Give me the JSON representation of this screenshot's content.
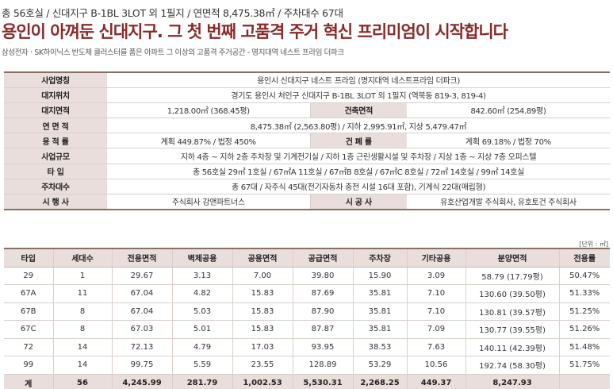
{
  "header": {
    "summary_line": "총 56호실 / 신대지구 B-1BL 3LOT 외 1필지 /  연면적 8,475.38㎡ / 주차대수 67대",
    "title": "용인이 아껴둔 신대지구. 그 첫 번째 고품격 주거 혁신 프리미엄이 시작합니다",
    "subtitle": "삼성전자 · SK하이닉스 반도체 클러스터를 품은 아파트 그 이상의 고품격 주거공간 - 명지대역 네스트 프라임 더파크"
  },
  "overview": {
    "rows": [
      {
        "type": "full",
        "label": "사업명칭",
        "value": "용인시 신대지구 네스트 프라임 (명지대역 네스트프라임 더파크)"
      },
      {
        "type": "full",
        "label": "대지위치",
        "value": "경기도 용인시 처인구 신대지구 B-1BL 3LOT 외 1필지 (역북동 819-3, 819-4)"
      },
      {
        "type": "split",
        "label": "대지면적",
        "value": "1,218.00㎡ (368.45평)",
        "label2": "건축면적",
        "value2": "842.60㎡ (254.89평)"
      },
      {
        "type": "full",
        "label": "연 면 적",
        "value": "8,475.38㎡ (2,563.80평) / 지하 2,995.91㎡, 지상 5,479.47㎡"
      },
      {
        "type": "split",
        "label": "용 적 률",
        "value": "계획 449.87% / 법정 450%",
        "label2": "건 폐 률",
        "value2": "계획 69.18% / 법정 70%"
      },
      {
        "type": "full",
        "label": "사업규모",
        "value": "지하 4층 ~ 지하 2층 주차장 및 기계전기실 / 지하 1층 근린생활시설 및 주차장 / 지상 1층 ~ 지상 7층 오피스텔"
      },
      {
        "type": "full",
        "label": "타    입",
        "value": "총 56호실  29㎡ 1호실 / 67㎡A 11호실 / 67㎡B 8호실 / 67㎡C 8호실 / 72㎡ 14호실 / 99㎡ 14호실"
      },
      {
        "type": "full",
        "label": "주차대수",
        "value": "총 67대 / 자주식 45대(전기자동차 충전 시설 16대 포함),  기계식 22대(매립형)"
      },
      {
        "type": "split",
        "label": "시 행 사",
        "value": "주식회사 강앤파트너스",
        "label2": "시 공 사",
        "value2": "유호산업개발 주식회사, 유호토건 주식회사"
      }
    ]
  },
  "unit_note": "[단위 : ㎡]",
  "detail": {
    "headers": [
      "타입",
      "세대수",
      "전용면적",
      "벽체공용",
      "공용면적",
      "공급면적",
      "주차장",
      "기타공용",
      "분양면적",
      "전용률"
    ],
    "rows": [
      [
        "29",
        "1",
        "29.67",
        "3.13",
        "7.00",
        "39.80",
        "15.90",
        "3.09",
        "58.79 (17.79평)",
        "50.47%"
      ],
      [
        "67A",
        "11",
        "67.04",
        "4.82",
        "15.83",
        "87.69",
        "35.81",
        "7.10",
        "130.60 (39.50평)",
        "51.33%"
      ],
      [
        "67B",
        "8",
        "67.04",
        "5.03",
        "15.83",
        "87.90",
        "35.81",
        "7.10",
        "130.81 (39.57평)",
        "51.25%"
      ],
      [
        "67C",
        "8",
        "67.03",
        "5.01",
        "15.83",
        "87.87",
        "35.81",
        "7.09",
        "130.77 (39.55평)",
        "51.26%"
      ],
      [
        "72",
        "14",
        "72.13",
        "4.79",
        "17.03",
        "93.95",
        "38.53",
        "7.63",
        "140.11 (42.39평)",
        "51.48%"
      ],
      [
        "99",
        "14",
        "99.75",
        "5.59",
        "23.55",
        "128.89",
        "53.29",
        "10.56",
        "192.74 (58.30평)",
        "51.75%"
      ]
    ],
    "total": [
      "계",
      "56",
      "4,245.99",
      "281.79",
      "1,002.53",
      "5,530.31",
      "2,268.25",
      "449.37",
      "8,247.93",
      ""
    ]
  }
}
